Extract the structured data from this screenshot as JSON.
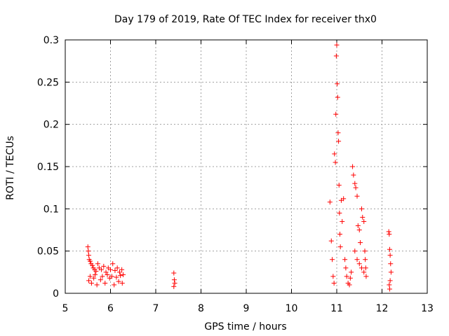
{
  "chart_data": {
    "type": "scatter",
    "title": "Day 179 of 2019, Rate Of TEC Index for receiver thx0",
    "xlabel": "GPS time / hours",
    "ylabel": "ROTI / TECUs",
    "xlim": [
      5,
      13
    ],
    "ylim": [
      0,
      0.3
    ],
    "xticks": [
      "5",
      "6",
      "7",
      "8",
      "9",
      "10",
      "11",
      "12",
      "13"
    ],
    "yticks": [
      "0",
      "0.05",
      "0.1",
      "0.15",
      "0.2",
      "0.25",
      "0.3"
    ],
    "grid": true,
    "marker": "+",
    "color": "#ff0000",
    "series": [
      {
        "name": "thx0",
        "points": [
          [
            5.5,
            0.055
          ],
          [
            5.51,
            0.05
          ],
          [
            5.52,
            0.045
          ],
          [
            5.53,
            0.04
          ],
          [
            5.55,
            0.038
          ],
          [
            5.57,
            0.035
          ],
          [
            5.6,
            0.033
          ],
          [
            5.62,
            0.03
          ],
          [
            5.65,
            0.028
          ],
          [
            5.68,
            0.026
          ],
          [
            5.72,
            0.035
          ],
          [
            5.75,
            0.03
          ],
          [
            5.8,
            0.028
          ],
          [
            5.85,
            0.032
          ],
          [
            5.9,
            0.025
          ],
          [
            5.95,
            0.03
          ],
          [
            6.0,
            0.028
          ],
          [
            6.05,
            0.035
          ],
          [
            6.1,
            0.027
          ],
          [
            6.15,
            0.03
          ],
          [
            6.2,
            0.025
          ],
          [
            6.25,
            0.028
          ],
          [
            6.28,
            0.022
          ],
          [
            5.52,
            0.015
          ],
          [
            5.58,
            0.012
          ],
          [
            5.63,
            0.018
          ],
          [
            5.7,
            0.01
          ],
          [
            5.78,
            0.016
          ],
          [
            5.88,
            0.012
          ],
          [
            5.98,
            0.018
          ],
          [
            6.08,
            0.01
          ],
          [
            6.18,
            0.014
          ],
          [
            6.26,
            0.012
          ],
          [
            5.55,
            0.02
          ],
          [
            5.66,
            0.022
          ],
          [
            5.82,
            0.02
          ],
          [
            5.93,
            0.022
          ],
          [
            6.03,
            0.02
          ],
          [
            6.13,
            0.019
          ],
          [
            6.22,
            0.021
          ],
          [
            7.4,
            0.024
          ],
          [
            7.41,
            0.016
          ],
          [
            7.42,
            0.012
          ],
          [
            7.4,
            0.008
          ],
          [
            10.85,
            0.108
          ],
          [
            10.88,
            0.062
          ],
          [
            10.9,
            0.04
          ],
          [
            10.92,
            0.02
          ],
          [
            10.94,
            0.012
          ],
          [
            10.95,
            0.165
          ],
          [
            10.97,
            0.155
          ],
          [
            10.98,
            0.212
          ],
          [
            10.99,
            0.281
          ],
          [
            11.0,
            0.294
          ],
          [
            11.01,
            0.248
          ],
          [
            11.02,
            0.232
          ],
          [
            11.03,
            0.19
          ],
          [
            11.04,
            0.18
          ],
          [
            11.05,
            0.128
          ],
          [
            11.06,
            0.095
          ],
          [
            11.07,
            0.07
          ],
          [
            11.08,
            0.055
          ],
          [
            11.1,
            0.11
          ],
          [
            11.12,
            0.085
          ],
          [
            11.15,
            0.112
          ],
          [
            11.18,
            0.04
          ],
          [
            11.2,
            0.03
          ],
          [
            11.22,
            0.02
          ],
          [
            11.25,
            0.012
          ],
          [
            11.28,
            0.01
          ],
          [
            11.3,
            0.018
          ],
          [
            11.32,
            0.025
          ],
          [
            11.35,
            0.15
          ],
          [
            11.37,
            0.14
          ],
          [
            11.4,
            0.13
          ],
          [
            11.42,
            0.125
          ],
          [
            11.45,
            0.115
          ],
          [
            11.47,
            0.08
          ],
          [
            11.5,
            0.075
          ],
          [
            11.52,
            0.06
          ],
          [
            11.55,
            0.1
          ],
          [
            11.57,
            0.09
          ],
          [
            11.6,
            0.085
          ],
          [
            11.62,
            0.05
          ],
          [
            11.63,
            0.04
          ],
          [
            11.64,
            0.03
          ],
          [
            11.65,
            0.02
          ],
          [
            11.4,
            0.05
          ],
          [
            11.45,
            0.04
          ],
          [
            11.5,
            0.035
          ],
          [
            11.55,
            0.03
          ],
          [
            11.6,
            0.025
          ],
          [
            12.15,
            0.073
          ],
          [
            12.16,
            0.07
          ],
          [
            12.17,
            0.052
          ],
          [
            12.18,
            0.045
          ],
          [
            12.19,
            0.035
          ],
          [
            12.2,
            0.025
          ],
          [
            12.18,
            0.015
          ],
          [
            12.16,
            0.01
          ],
          [
            12.17,
            0.005
          ]
        ]
      }
    ]
  }
}
